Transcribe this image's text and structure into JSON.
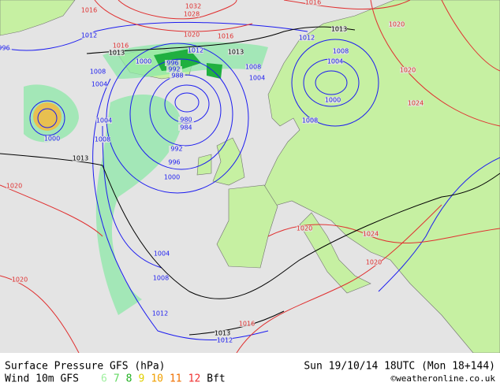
{
  "map": {
    "isobar_labels": [
      {
        "text": "1016",
        "kind": "high"
      },
      {
        "text": "1032",
        "kind": "high"
      },
      {
        "text": "1028",
        "kind": "high"
      },
      {
        "text": "1016",
        "kind": "high"
      },
      {
        "text": "1012",
        "kind": "low"
      },
      {
        "text": "1016",
        "kind": "high"
      },
      {
        "text": "1020",
        "kind": "high"
      },
      {
        "text": "1016",
        "kind": "high"
      },
      {
        "text": "1013",
        "kind": "ref"
      },
      {
        "text": "1012",
        "kind": "low"
      },
      {
        "text": "1013",
        "kind": "ref"
      },
      {
        "text": "1013",
        "kind": "ref"
      },
      {
        "text": "1012",
        "kind": "low"
      },
      {
        "text": "1020",
        "kind": "high"
      },
      {
        "text": "996",
        "kind": "low"
      },
      {
        "text": "1000",
        "kind": "low"
      },
      {
        "text": "996",
        "kind": "low"
      },
      {
        "text": "992",
        "kind": "low"
      },
      {
        "text": "988",
        "kind": "low"
      },
      {
        "text": "1008",
        "kind": "low"
      },
      {
        "text": "1004",
        "kind": "low"
      },
      {
        "text": "1004",
        "kind": "low"
      },
      {
        "text": "1008",
        "kind": "low"
      },
      {
        "text": "1008",
        "kind": "low"
      },
      {
        "text": "1004",
        "kind": "low"
      },
      {
        "text": "1000",
        "kind": "low"
      },
      {
        "text": "1020",
        "kind": "high"
      },
      {
        "text": "1024",
        "kind": "high"
      },
      {
        "text": "980",
        "kind": "low"
      },
      {
        "text": "984",
        "kind": "low"
      },
      {
        "text": "1004",
        "kind": "low"
      },
      {
        "text": "1008",
        "kind": "low"
      },
      {
        "text": "1008",
        "kind": "low"
      },
      {
        "text": "992",
        "kind": "low"
      },
      {
        "text": "996",
        "kind": "low"
      },
      {
        "text": "1000",
        "kind": "low"
      },
      {
        "text": "1013",
        "kind": "ref"
      },
      {
        "text": "1020",
        "kind": "high"
      },
      {
        "text": "1000",
        "kind": "low"
      },
      {
        "text": "1004",
        "kind": "low"
      },
      {
        "text": "1008",
        "kind": "low"
      },
      {
        "text": "1020",
        "kind": "high"
      },
      {
        "text": "1024",
        "kind": "high"
      },
      {
        "text": "1020",
        "kind": "high"
      },
      {
        "text": "1020",
        "kind": "high"
      },
      {
        "text": "1012",
        "kind": "low"
      },
      {
        "text": "1016",
        "kind": "high"
      },
      {
        "text": "1013",
        "kind": "ref"
      },
      {
        "text": "1012",
        "kind": "low"
      }
    ],
    "footer": {
      "title": "Surface Pressure GFS (hPa)",
      "time": "Sun 19/10/14 18UTC (Mon 18+144)",
      "wind": "Wind 10m GFS",
      "scale": [
        {
          "label": "6",
          "color": "#a0f0a0"
        },
        {
          "label": "7",
          "color": "#60d860"
        },
        {
          "label": "8",
          "color": "#20b020"
        },
        {
          "label": "9",
          "color": "#e0d000"
        },
        {
          "label": "10",
          "color": "#f0a000"
        },
        {
          "label": "11",
          "color": "#f07000"
        },
        {
          "label": "12",
          "color": "#f03030"
        }
      ],
      "unit": "Bft",
      "credit": "©weatheronline.co.uk"
    }
  }
}
